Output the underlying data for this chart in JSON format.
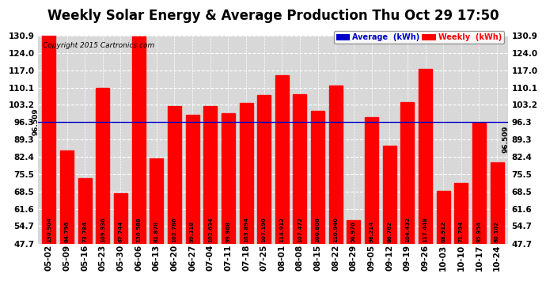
{
  "title": "Weekly Solar Energy & Average Production Thu Oct 29 17:50",
  "copyright": "Copyright 2015 Cartronics.com",
  "categories": [
    "05-02",
    "05-09",
    "05-16",
    "05-23",
    "05-30",
    "06-06",
    "06-13",
    "06-20",
    "06-27",
    "07-04",
    "07-11",
    "07-18",
    "07-25",
    "08-01",
    "08-08",
    "08-15",
    "08-22",
    "08-29",
    "09-05",
    "09-12",
    "09-19",
    "09-26",
    "10-03",
    "10-10",
    "10-17",
    "10-24"
  ],
  "values": [
    130.904,
    84.796,
    73.784,
    109.936,
    67.744,
    130.588,
    81.878,
    102.786,
    99.318,
    102.634,
    99.968,
    103.894,
    107.19,
    114.912,
    107.472,
    100.808,
    110.94,
    56.976,
    98.214,
    86.762,
    104.432,
    117.448,
    68.912,
    71.794,
    95.954,
    80.102
  ],
  "average": 96.509,
  "bar_color": "#ff0000",
  "average_line_color": "#0000cc",
  "background_color": "#ffffff",
  "plot_bg_color": "#d8d8d8",
  "ylim_min": 47.7,
  "ylim_max": 130.9,
  "yticks": [
    47.7,
    54.7,
    61.6,
    68.5,
    75.5,
    82.4,
    89.3,
    96.3,
    103.2,
    110.1,
    117.0,
    124.0,
    130.9
  ],
  "legend_avg_color": "#0000cc",
  "legend_weekly_color": "#ff0000",
  "legend_avg_label": "Average  (kWh)",
  "legend_weekly_label": "Weekly  (kWh)",
  "title_fontsize": 12,
  "bar_label_fontsize": 5.5,
  "tick_fontsize": 7.5,
  "avg_label": "96.509"
}
